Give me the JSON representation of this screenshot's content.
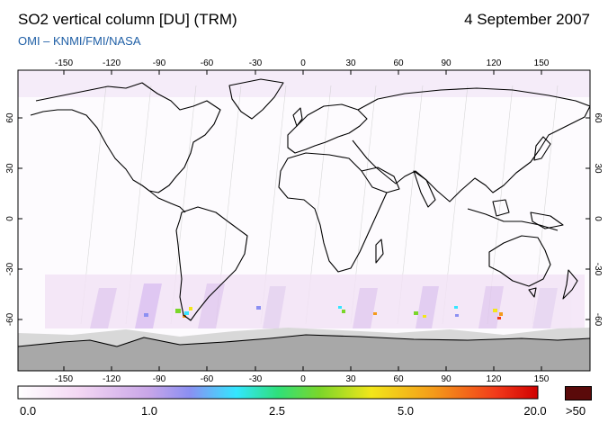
{
  "title": "SO2 vertical column [DU] (TRM)",
  "date": "4 September 2007",
  "credit": "OMI  –  KNMI/FMI/NASA",
  "lon_ticks_top": [
    "-150",
    "-120",
    "-90",
    "-60",
    "-30",
    "0",
    "30",
    "60",
    "90",
    "120",
    "150"
  ],
  "lon_ticks_bottom": [
    "-150",
    "-120",
    "-90",
    "-60",
    "-30",
    "0",
    "30",
    "60",
    "90",
    "120",
    "150"
  ],
  "lat_ticks": [
    "60",
    "30",
    "0",
    "-30",
    "-60"
  ],
  "colorbar": {
    "labels": [
      "0.0",
      "1.0",
      "2.5",
      "5.0",
      "20.0"
    ],
    "over_label": ">50",
    "over_color": "#5a0a0a",
    "stops": [
      "#ffffff",
      "#f3d6f3",
      "#c9a6e8",
      "#8b8ff2",
      "#33e6ff",
      "#2fe07a",
      "#7ad62a",
      "#f2e61a",
      "#f49a1a",
      "#f23a1a",
      "#d00000"
    ]
  },
  "colors": {
    "land_outline": "#000000",
    "no_data": "#a8a8a8",
    "sea_ice": "#d8d8d8",
    "credit": "#1f5fa6"
  }
}
